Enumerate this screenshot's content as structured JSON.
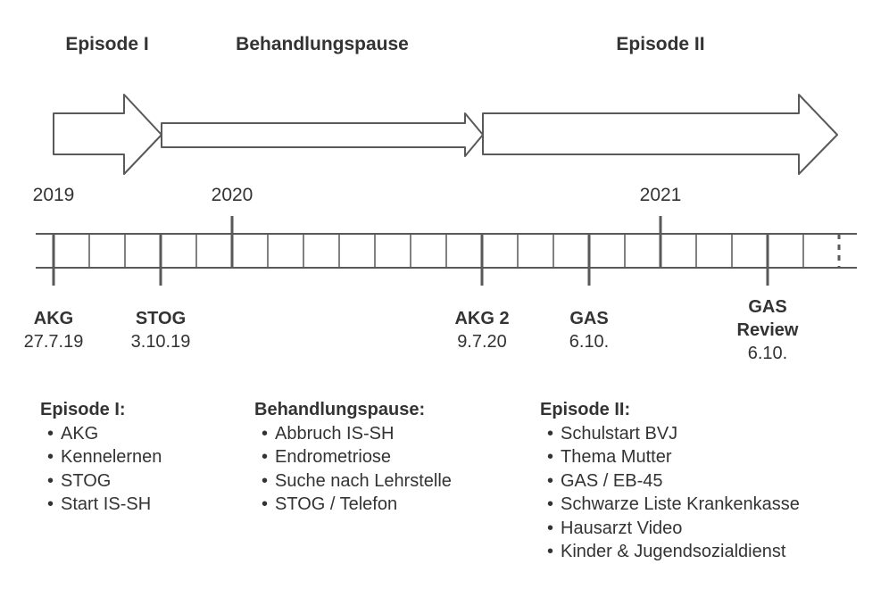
{
  "phases": [
    {
      "label": "Episode I"
    },
    {
      "label": "Behandlungspause"
    },
    {
      "label": "Episode II"
    }
  ],
  "years": [
    "2019",
    "2020",
    "2021"
  ],
  "events": [
    {
      "title": "AKG",
      "date": "27.7.19"
    },
    {
      "title": "STOG",
      "date": "3.10.19"
    },
    {
      "title": "AKG 2",
      "date": "9.7.20"
    },
    {
      "title": "GAS",
      "date": "6.10."
    },
    {
      "title": "GAS Review",
      "title_line1": "GAS",
      "title_line2": "Review",
      "date": "6.10."
    }
  ],
  "lists": [
    {
      "heading": "Episode I:",
      "items": [
        "AKG",
        "Kennelernen",
        "STOG",
        "Start IS-SH"
      ]
    },
    {
      "heading": "Behandlungspause:",
      "items": [
        "Abbruch IS-SH",
        "Endrometriose",
        "Suche nach Lehrstelle",
        "STOG / Telefon"
      ]
    },
    {
      "heading": "Episode II:",
      "items": [
        "Schulstart BVJ",
        "Thema Mutter",
        "GAS / EB-45",
        "Schwarze Liste Krankenkasse",
        "Hausarzt Video",
        "Kinder & Jugendsozialdienst"
      ]
    }
  ],
  "colors": {
    "stroke": "#595959",
    "text": "#333333"
  }
}
